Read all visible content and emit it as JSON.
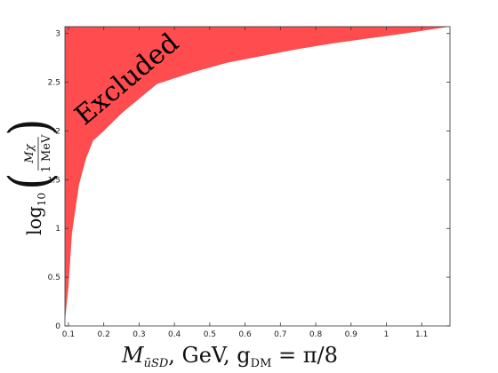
{
  "chart_data": {
    "type": "area",
    "x_ticks": [
      "0.1",
      "0.2",
      "0.3",
      "0.4",
      "0.5",
      "0.6",
      "0.7",
      "0.8",
      "0.9",
      "1",
      "1.1"
    ],
    "y_ticks": [
      "0",
      "0.5",
      "1",
      "1.5",
      "2",
      "2.5",
      "3"
    ],
    "xlim": [
      0.09,
      1.18
    ],
    "ylim": [
      0,
      3.07
    ],
    "excluded_boundary": {
      "x": [
        0.09,
        0.1,
        0.11,
        0.13,
        0.15,
        0.17,
        0.2,
        0.25,
        0.3,
        0.35,
        0.45,
        0.55,
        0.65,
        0.75,
        0.85,
        0.95,
        1.05,
        1.18
      ],
      "y": [
        0.05,
        0.4,
        0.95,
        1.45,
        1.72,
        1.9,
        2.0,
        2.18,
        2.33,
        2.48,
        2.6,
        2.7,
        2.77,
        2.84,
        2.9,
        2.95,
        3.0,
        3.07
      ]
    },
    "region_label": "Excluded",
    "fill_color": "#ff4d4f",
    "xlabel": {
      "prefix": "M",
      "subscript": "ũSD",
      "text": ", GeV, g",
      "coupling_subscript": "DM",
      "value": " = π/8"
    },
    "ylabel": {
      "func": "log",
      "base": "10",
      "numerator": "Mχ",
      "denominator": "1 MeV"
    }
  }
}
